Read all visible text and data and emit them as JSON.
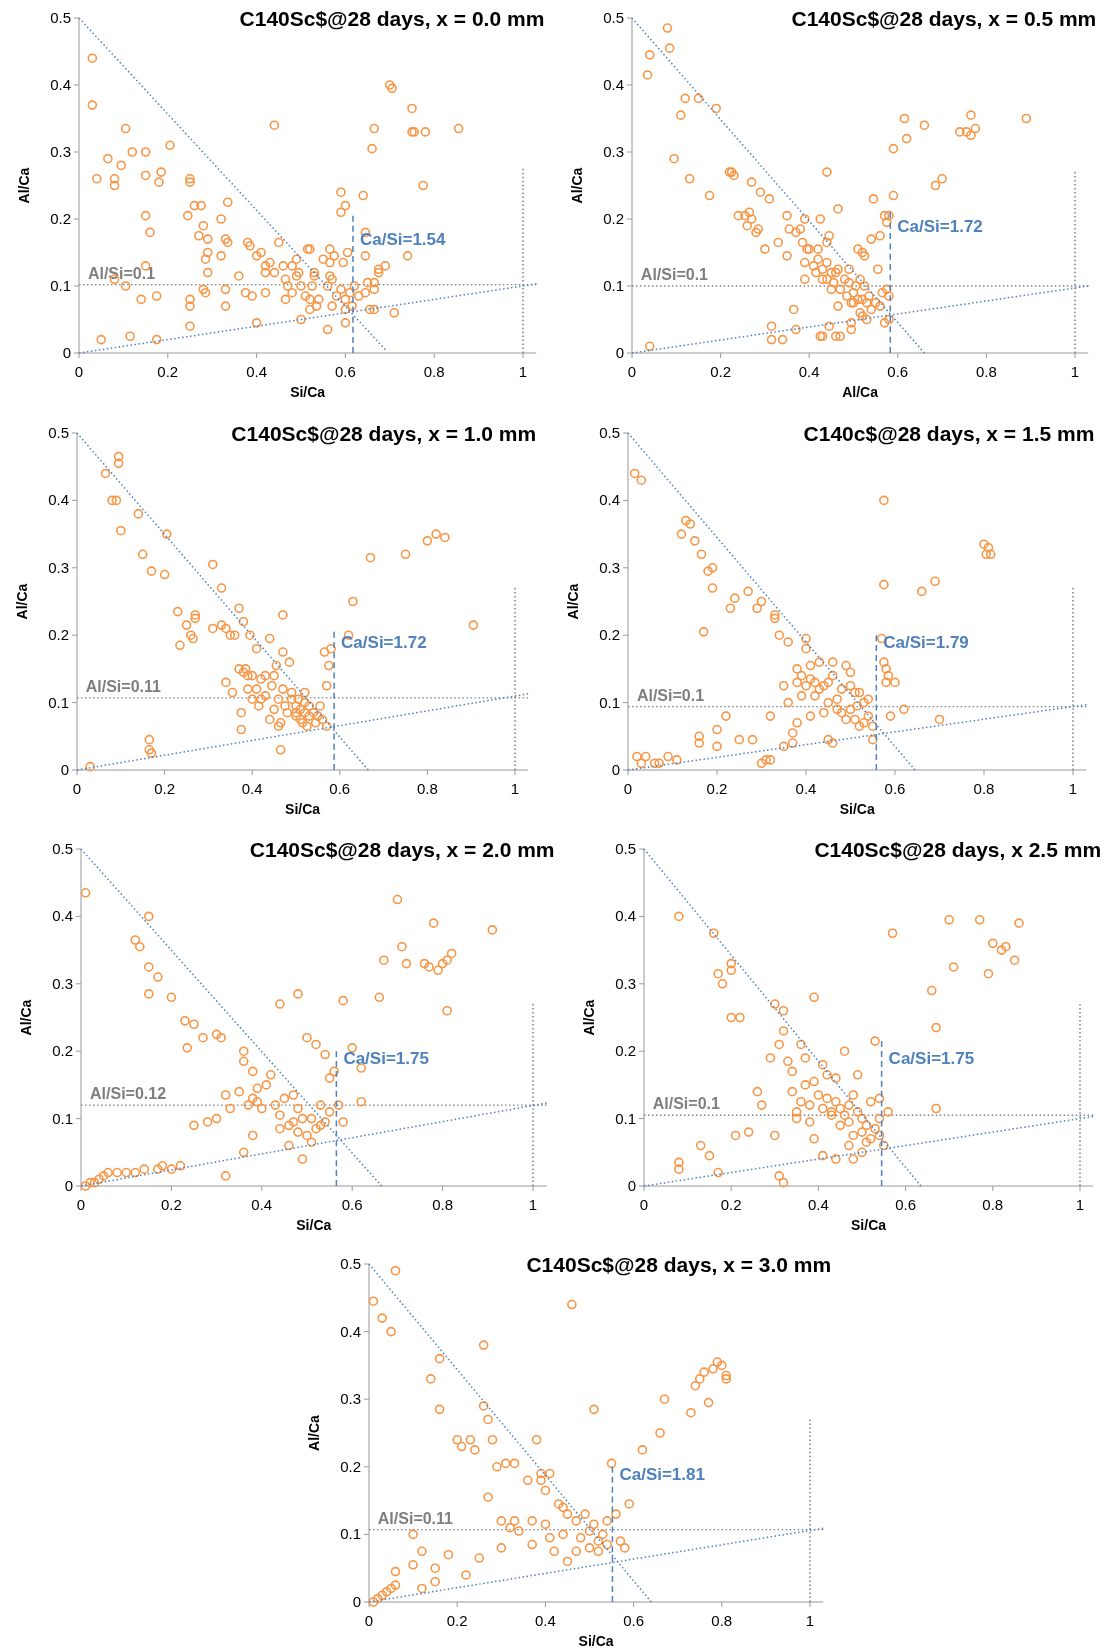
{
  "chart_data": [
    {
      "type": "scatter",
      "title": "C140Sc$@28 days, x = 0.0 mm",
      "xlabel": "Si/Ca",
      "ylabel": "Al/Ca",
      "xlim": [
        0,
        1.03
      ],
      "ylim": [
        0,
        0.5
      ],
      "xticks": [
        0,
        0.2,
        0.4,
        0.6,
        0.8,
        1
      ],
      "yticks": [
        0,
        0.1,
        0.2,
        0.3,
        0.4,
        0.5
      ],
      "series": [
        {
          "type": "scatter",
          "color": "#f79646",
          "marker": "circle",
          "x": [
            0.03,
            0.03,
            0.04,
            0.05,
            0.065,
            0.08,
            0.08,
            0.08,
            0.095,
            0.105,
            0.105,
            0.12,
            0.115,
            0.14,
            0.15,
            0.15,
            0.15,
            0.15,
            0.16,
            0.175,
            0.175,
            0.18,
            0.185,
            0.205,
            0.25,
            0.25,
            0.245,
            0.25,
            0.25,
            0.25,
            0.26,
            0.27,
            0.275,
            0.28,
            0.28,
            0.285,
            0.285,
            0.29,
            0.29,
            0.29,
            0.32,
            0.32,
            0.33,
            0.335,
            0.335,
            0.33,
            0.33,
            0.36,
            0.375,
            0.38,
            0.385,
            0.39,
            0.4,
            0.4,
            0.41,
            0.42,
            0.42,
            0.42,
            0.43,
            0.44,
            0.44,
            0.45,
            0.46,
            0.465,
            0.465,
            0.47,
            0.48,
            0.48,
            0.49,
            0.49,
            0.495,
            0.5,
            0.5,
            0.51,
            0.515,
            0.52,
            0.52,
            0.52,
            0.525,
            0.53,
            0.53,
            0.535,
            0.54,
            0.55,
            0.56,
            0.56,
            0.565,
            0.565,
            0.565,
            0.57,
            0.57,
            0.575,
            0.58,
            0.59,
            0.59,
            0.59,
            0.595,
            0.6,
            0.6,
            0.6,
            0.6,
            0.605,
            0.61,
            0.615,
            0.62,
            0.63,
            0.64,
            0.645,
            0.645,
            0.645,
            0.65,
            0.655,
            0.66,
            0.665,
            0.665,
            0.665,
            0.665,
            0.675,
            0.675,
            0.69,
            0.7,
            0.705,
            0.71,
            0.74,
            0.75,
            0.75,
            0.755,
            0.775,
            0.78,
            0.855
          ],
          "values": [
            0.44,
            0.37,
            0.26,
            0.02,
            0.29,
            0.26,
            0.25,
            0.11,
            0.28,
            0.335,
            0.1,
            0.3,
            0.025,
            0.08,
            0.3,
            0.265,
            0.205,
            0.13,
            0.18,
            0.02,
            0.085,
            0.255,
            0.27,
            0.31,
            0.26,
            0.255,
            0.205,
            0.08,
            0.07,
            0.04,
            0.22,
            0.175,
            0.22,
            0.19,
            0.095,
            0.09,
            0.14,
            0.17,
            0.15,
            0.12,
            0.2,
            0.145,
            0.17,
            0.165,
            0.225,
            0.095,
            0.07,
            0.115,
            0.09,
            0.165,
            0.16,
            0.085,
            0.145,
            0.045,
            0.15,
            0.13,
            0.12,
            0.09,
            0.135,
            0.12,
            0.34,
            0.165,
            0.13,
            0.11,
            0.08,
            0.1,
            0.13,
            0.09,
            0.14,
            0.115,
            0.12,
            0.05,
            0.1,
            0.085,
            0.155,
            0.155,
            0.08,
            0.065,
            0.1,
            0.115,
            0.12,
            0.07,
            0.08,
            0.14,
            0.1,
            0.035,
            0.155,
            0.135,
            0.115,
            0.11,
            0.07,
            0.145,
            0.085,
            0.24,
            0.21,
            0.095,
            0.135,
            0.22,
            0.08,
            0.065,
            0.045,
            0.15,
            0.09,
            0.07,
            0.1,
            0.085,
            0.235,
            0.18,
            0.145,
            0.09,
            0.105,
            0.065,
            0.305,
            0.335,
            0.105,
            0.095,
            0.065,
            0.125,
            0.12,
            0.13,
            0.4,
            0.395,
            0.06,
            0.145,
            0.365,
            0.33,
            0.33,
            0.25,
            0.33,
            0.335
          ]
        },
        {
          "type": "line",
          "color": "#4f81bd",
          "line_style": "dotted",
          "x": [
            0,
            0.69
          ],
          "values": [
            0.5,
            0.005
          ]
        },
        {
          "type": "line",
          "color": "#4f81bd",
          "line_style": "dotted",
          "x": [
            0,
            1.03
          ],
          "values": [
            0,
            0.103
          ]
        },
        {
          "type": "line",
          "color": "#4f81bd",
          "line_style": "dashed",
          "x": [
            0.617,
            0.617
          ],
          "values": [
            0,
            0.205
          ]
        },
        {
          "type": "line",
          "color": "#7f7f7f",
          "line_style": "dotted",
          "x": [
            1,
            1
          ],
          "values": [
            0,
            0.275
          ]
        }
      ],
      "ref_lines": [
        {
          "axis": "y",
          "value": 0.102,
          "label": "Al/Si=0.1",
          "color": "#7f7f7f",
          "line_style": "dotted"
        }
      ],
      "annotations": [
        {
          "text": "Ca/Si=1.54",
          "x": 0.617,
          "y": 0.17
        }
      ]
    },
    {
      "type": "scatter",
      "title": "C140Sc$@28 days, x = 0.5 mm",
      "xlabel": "Al/Ca",
      "ylabel": "Al/Ca",
      "xlim": [
        0,
        1.03
      ],
      "ylim": [
        0,
        0.5
      ],
      "xticks": [
        0,
        0.2,
        0.4,
        0.6,
        0.8,
        1
      ],
      "yticks": [
        0,
        0.1,
        0.2,
        0.3,
        0.4,
        0.5
      ],
      "series": [
        {
          "type": "scatter",
          "color": "#f79646",
          "marker": "circle",
          "x": [
            0.035,
            0.04,
            0.04,
            0.08,
            0.085,
            0.095,
            0.11,
            0.12,
            0.13,
            0.15,
            0.175,
            0.19,
            0.22,
            0.225,
            0.23,
            0.24,
            0.255,
            0.26,
            0.265,
            0.27,
            0.27,
            0.28,
            0.285,
            0.29,
            0.3,
            0.31,
            0.315,
            0.315,
            0.33,
            0.34,
            0.35,
            0.35,
            0.355,
            0.365,
            0.37,
            0.37,
            0.38,
            0.385,
            0.39,
            0.39,
            0.39,
            0.395,
            0.4,
            0.41,
            0.415,
            0.42,
            0.42,
            0.425,
            0.425,
            0.43,
            0.43,
            0.43,
            0.44,
            0.44,
            0.44,
            0.44,
            0.445,
            0.445,
            0.45,
            0.45,
            0.455,
            0.46,
            0.46,
            0.465,
            0.465,
            0.465,
            0.47,
            0.47,
            0.48,
            0.485,
            0.49,
            0.49,
            0.495,
            0.495,
            0.495,
            0.5,
            0.5,
            0.505,
            0.51,
            0.51,
            0.515,
            0.515,
            0.52,
            0.52,
            0.52,
            0.525,
            0.525,
            0.53,
            0.53,
            0.535,
            0.54,
            0.54,
            0.545,
            0.55,
            0.555,
            0.56,
            0.56,
            0.565,
            0.57,
            0.57,
            0.575,
            0.575,
            0.58,
            0.58,
            0.58,
            0.59,
            0.59,
            0.615,
            0.62,
            0.66,
            0.685,
            0.7,
            0.74,
            0.755,
            0.765,
            0.765,
            0.775,
            0.89
          ],
          "values": [
            0.415,
            0.445,
            0.01,
            0.485,
            0.455,
            0.29,
            0.355,
            0.38,
            0.26,
            0.38,
            0.235,
            0.365,
            0.27,
            0.27,
            0.265,
            0.205,
            0.205,
            0.19,
            0.21,
            0.255,
            0.2,
            0.18,
            0.185,
            0.24,
            0.155,
            0.23,
            0.04,
            0.02,
            0.165,
            0.02,
            0.205,
            0.145,
            0.185,
            0.065,
            0.18,
            0.035,
            0.185,
            0.165,
            0.2,
            0.135,
            0.11,
            0.155,
            0.155,
            0.13,
            0.12,
            0.155,
            0.14,
            0.2,
            0.025,
            0.025,
            0.125,
            0.11,
            0.11,
            0.135,
            0.165,
            0.27,
            0.04,
            0.175,
            0.095,
            0.12,
            0.105,
            0.12,
            0.025,
            0.125,
            0.215,
            0.07,
            0.095,
            0.025,
            0.11,
            0.085,
            0.125,
            0.105,
            0.075,
            0.045,
            0.035,
            0.09,
            0.075,
            0.1,
            0.155,
            0.08,
            0.06,
            0.11,
            0.15,
            0.055,
            0.08,
            0.1,
            0.145,
            0.075,
            0.05,
            0.085,
            0.17,
            0.065,
            0.23,
            0.075,
            0.125,
            0.175,
            0.07,
            0.09,
            0.205,
            0.045,
            0.195,
            0.095,
            0.205,
            0.085,
            0.05,
            0.305,
            0.235,
            0.35,
            0.32,
            0.34,
            0.25,
            0.26,
            0.33,
            0.33,
            0.325,
            0.355,
            0.335,
            0.35
          ]
        },
        {
          "type": "line",
          "color": "#4f81bd",
          "line_style": "dotted",
          "x": [
            0,
            0.66
          ],
          "values": [
            0.5,
            0
          ]
        },
        {
          "type": "line",
          "color": "#4f81bd",
          "line_style": "dotted",
          "x": [
            0,
            1.03
          ],
          "values": [
            0,
            0.1
          ]
        },
        {
          "type": "line",
          "color": "#4f81bd",
          "line_style": "dashed",
          "x": [
            0.583,
            0.583
          ],
          "values": [
            0,
            0.21
          ]
        },
        {
          "type": "line",
          "color": "#7f7f7f",
          "line_style": "dotted",
          "x": [
            1,
            1
          ],
          "values": [
            0,
            0.27
          ]
        }
      ],
      "ref_lines": [
        {
          "axis": "y",
          "value": 0.1,
          "label": "Al/Si=0.1",
          "color": "#7f7f7f",
          "line_style": "dotted"
        }
      ],
      "annotations": [
        {
          "text": "Ca/Si=1.72",
          "x": 0.583,
          "y": 0.19
        }
      ]
    },
    {
      "type": "scatter",
      "title": "C140Sc$@28 days, x = 1.0 mm",
      "xlabel": "Si/Ca",
      "ylabel": "Al/Ca",
      "xlim": [
        0,
        1.03
      ],
      "ylim": [
        0,
        0.5
      ],
      "xticks": [
        0,
        0.2,
        0.4,
        0.6,
        0.8,
        1
      ],
      "yticks": [
        0,
        0.1,
        0.2,
        0.3,
        0.4,
        0.5
      ],
      "series": [
        {
          "type": "scatter",
          "color": "#f79646",
          "marker": "circle",
          "x": [
            0.03,
            0.065,
            0.08,
            0.09,
            0.095,
            0.095,
            0.1,
            0.165,
            0.165,
            0.17,
            0.14,
            0.15,
            0.17,
            0.2,
            0.205,
            0.23,
            0.235,
            0.25,
            0.26,
            0.265,
            0.27,
            0.27,
            0.31,
            0.31,
            0.33,
            0.33,
            0.34,
            0.34,
            0.35,
            0.355,
            0.36,
            0.37,
            0.37,
            0.375,
            0.375,
            0.38,
            0.38,
            0.385,
            0.39,
            0.39,
            0.395,
            0.4,
            0.4,
            0.41,
            0.41,
            0.415,
            0.42,
            0.42,
            0.43,
            0.43,
            0.44,
            0.44,
            0.445,
            0.45,
            0.45,
            0.455,
            0.46,
            0.46,
            0.465,
            0.465,
            0.47,
            0.47,
            0.47,
            0.475,
            0.48,
            0.485,
            0.49,
            0.49,
            0.5,
            0.5,
            0.5,
            0.505,
            0.51,
            0.51,
            0.515,
            0.52,
            0.52,
            0.52,
            0.525,
            0.53,
            0.53,
            0.54,
            0.545,
            0.55,
            0.555,
            0.56,
            0.565,
            0.57,
            0.57,
            0.575,
            0.58,
            0.62,
            0.63,
            0.67,
            0.75,
            0.8,
            0.82,
            0.84,
            0.905
          ],
          "values": [
            0.005,
            0.44,
            0.4,
            0.4,
            0.465,
            0.455,
            0.355,
            0.045,
            0.03,
            0.025,
            0.38,
            0.32,
            0.295,
            0.29,
            0.35,
            0.235,
            0.185,
            0.215,
            0.2,
            0.195,
            0.225,
            0.23,
            0.305,
            0.21,
            0.27,
            0.215,
            0.21,
            0.13,
            0.2,
            0.115,
            0.2,
            0.24,
            0.15,
            0.06,
            0.085,
            0.22,
            0.145,
            0.15,
            0.14,
            0.12,
            0.2,
            0.105,
            0.14,
            0.18,
            0.12,
            0.095,
            0.105,
            0.135,
            0.11,
            0.14,
            0.075,
            0.195,
            0.125,
            0.09,
            0.14,
            0.155,
            0.105,
            0.065,
            0.07,
            0.03,
            0.23,
            0.175,
            0.12,
            0.095,
            0.085,
            0.16,
            0.105,
            0.115,
            0.095,
            0.085,
            0.08,
            0.105,
            0.09,
            0.075,
            0.07,
            0.085,
            0.115,
            0.1,
            0.065,
            0.08,
            0.095,
            0.085,
            0.07,
            0.08,
            0.095,
            0.075,
            0.175,
            0.065,
            0.125,
            0.155,
            0.18,
            0.2,
            0.25,
            0.315,
            0.32,
            0.34,
            0.35,
            0.345,
            0.215
          ]
        },
        {
          "type": "line",
          "color": "#4f81bd",
          "line_style": "dotted",
          "x": [
            0,
            0.665
          ],
          "values": [
            0.5,
            0
          ]
        },
        {
          "type": "line",
          "color": "#4f81bd",
          "line_style": "dotted",
          "x": [
            0,
            1.03
          ],
          "values": [
            0,
            0.113
          ]
        },
        {
          "type": "line",
          "color": "#4f81bd",
          "line_style": "dashed",
          "x": [
            0.587,
            0.587
          ],
          "values": [
            0,
            0.205
          ]
        },
        {
          "type": "line",
          "color": "#7f7f7f",
          "line_style": "dotted",
          "x": [
            1,
            1
          ],
          "values": [
            0,
            0.27
          ]
        }
      ],
      "ref_lines": [
        {
          "axis": "y",
          "value": 0.107,
          "label": "Al/Si=0.11",
          "color": "#7f7f7f",
          "line_style": "dotted"
        }
      ],
      "annotations": [
        {
          "text": "Ca/Si=1.72",
          "x": 0.587,
          "y": 0.19
        }
      ]
    },
    {
      "type": "scatter",
      "title": "C140c$@28 days, x = 1.5 mm",
      "xlabel": "Si/Ca",
      "ylabel": "Al/Ca",
      "xlim": [
        0,
        1.03
      ],
      "ylim": [
        0,
        0.5
      ],
      "xticks": [
        0,
        0.2,
        0.4,
        0.6,
        0.8,
        1
      ],
      "yticks": [
        0,
        0.1,
        0.2,
        0.3,
        0.4,
        0.5
      ],
      "series": [
        {
          "type": "scatter",
          "color": "#f79646",
          "marker": "circle",
          "x": [
            0.015,
            0.03,
            0.02,
            0.03,
            0.04,
            0.06,
            0.07,
            0.09,
            0.11,
            0.12,
            0.13,
            0.14,
            0.15,
            0.165,
            0.17,
            0.16,
            0.16,
            0.18,
            0.19,
            0.19,
            0.2,
            0.2,
            0.22,
            0.23,
            0.24,
            0.25,
            0.27,
            0.28,
            0.29,
            0.3,
            0.3,
            0.31,
            0.32,
            0.32,
            0.33,
            0.33,
            0.34,
            0.35,
            0.35,
            0.36,
            0.36,
            0.37,
            0.37,
            0.38,
            0.38,
            0.38,
            0.39,
            0.39,
            0.4,
            0.4,
            0.4,
            0.41,
            0.41,
            0.41,
            0.42,
            0.42,
            0.43,
            0.43,
            0.44,
            0.44,
            0.45,
            0.45,
            0.45,
            0.46,
            0.46,
            0.46,
            0.47,
            0.47,
            0.48,
            0.48,
            0.49,
            0.49,
            0.5,
            0.5,
            0.5,
            0.51,
            0.51,
            0.515,
            0.52,
            0.52,
            0.53,
            0.53,
            0.54,
            0.54,
            0.55,
            0.55,
            0.57,
            0.575,
            0.575,
            0.575,
            0.58,
            0.58,
            0.585,
            0.59,
            0.6,
            0.62,
            0.66,
            0.69,
            0.7,
            0.8,
            0.805,
            0.81,
            0.815
          ],
          "values": [
            0.44,
            0.43,
            0.02,
            0.01,
            0.02,
            0.01,
            0.01,
            0.02,
            0.015,
            0.35,
            0.37,
            0.365,
            0.34,
            0.32,
            0.205,
            0.05,
            0.04,
            0.295,
            0.3,
            0.27,
            0.06,
            0.035,
            0.08,
            0.24,
            0.255,
            0.045,
            0.265,
            0.045,
            0.24,
            0.25,
            0.01,
            0.015,
            0.015,
            0.08,
            0.225,
            0.23,
            0.2,
            0.125,
            0.035,
            0.19,
            0.1,
            0.055,
            0.04,
            0.15,
            0.13,
            0.07,
            0.14,
            0.11,
            0.195,
            0.18,
            0.125,
            0.155,
            0.135,
            0.08,
            0.13,
            0.11,
            0.12,
            0.16,
            0.125,
            0.085,
            0.13,
            0.1,
            0.045,
            0.16,
            0.14,
            0.04,
            0.105,
            0.09,
            0.085,
            0.12,
            0.155,
            0.075,
            0.145,
            0.125,
            0.09,
            0.115,
            0.075,
            0.095,
            0.065,
            0.115,
            0.1,
            0.07,
            0.08,
            0.105,
            0.065,
            0.045,
            0.195,
            0.275,
            0.4,
            0.16,
            0.15,
            0.13,
            0.14,
            0.08,
            0.13,
            0.09,
            0.265,
            0.28,
            0.075,
            0.335,
            0.32,
            0.33,
            0.32
          ]
        },
        {
          "type": "line",
          "color": "#4f81bd",
          "line_style": "dotted",
          "x": [
            0,
            0.645
          ],
          "values": [
            0.5,
            0
          ]
        },
        {
          "type": "line",
          "color": "#4f81bd",
          "line_style": "dotted",
          "x": [
            0,
            1.03
          ],
          "values": [
            0,
            0.097
          ]
        },
        {
          "type": "line",
          "color": "#4f81bd",
          "line_style": "dashed",
          "x": [
            0.558,
            0.558
          ],
          "values": [
            0,
            0.2
          ]
        },
        {
          "type": "line",
          "color": "#7f7f7f",
          "line_style": "dotted",
          "x": [
            1,
            1
          ],
          "values": [
            0,
            0.27
          ]
        }
      ],
      "ref_lines": [
        {
          "axis": "y",
          "value": 0.094,
          "label": "Al/Si=0.1",
          "color": "#7f7f7f",
          "line_style": "dotted"
        }
      ],
      "annotations": [
        {
          "text": "Ca/Si=1.79",
          "x": 0.558,
          "y": 0.19
        }
      ]
    },
    {
      "type": "scatter",
      "title": "C140Sc$@28 days, x = 2.0 mm",
      "xlabel": "Si/Ca",
      "ylabel": "Al/Ca",
      "xlim": [
        0,
        1.03
      ],
      "ylim": [
        0,
        0.5
      ],
      "xticks": [
        0,
        0.2,
        0.4,
        0.6,
        0.8,
        1
      ],
      "yticks": [
        0,
        0.1,
        0.2,
        0.3,
        0.4,
        0.5
      ],
      "series": [
        {
          "type": "scatter",
          "color": "#f79646",
          "marker": "circle",
          "x": [
            0.01,
            0.02,
            0.03,
            0.01,
            0.04,
            0.05,
            0.06,
            0.08,
            0.1,
            0.12,
            0.13,
            0.12,
            0.14,
            0.15,
            0.15,
            0.15,
            0.17,
            0.17,
            0.18,
            0.2,
            0.2,
            0.22,
            0.23,
            0.235,
            0.25,
            0.25,
            0.27,
            0.28,
            0.3,
            0.3,
            0.31,
            0.32,
            0.32,
            0.33,
            0.35,
            0.36,
            0.36,
            0.36,
            0.37,
            0.38,
            0.38,
            0.38,
            0.39,
            0.39,
            0.4,
            0.41,
            0.42,
            0.43,
            0.44,
            0.44,
            0.44,
            0.45,
            0.46,
            0.46,
            0.47,
            0.47,
            0.48,
            0.48,
            0.48,
            0.49,
            0.49,
            0.5,
            0.5,
            0.51,
            0.51,
            0.52,
            0.52,
            0.53,
            0.53,
            0.54,
            0.54,
            0.55,
            0.55,
            0.56,
            0.57,
            0.58,
            0.58,
            0.6,
            0.62,
            0.62,
            0.66,
            0.67,
            0.7,
            0.71,
            0.72,
            0.76,
            0.77,
            0.78,
            0.79,
            0.8,
            0.81,
            0.81,
            0.82,
            0.91
          ],
          "values": [
            0,
            0.005,
            0.005,
            0.435,
            0.01,
            0.015,
            0.02,
            0.02,
            0.02,
            0.365,
            0.355,
            0.02,
            0.025,
            0.4,
            0.325,
            0.285,
            0.31,
            0.025,
            0.03,
            0.28,
            0.025,
            0.03,
            0.245,
            0.205,
            0.24,
            0.09,
            0.22,
            0.095,
            0.225,
            0.1,
            0.22,
            0.015,
            0.135,
            0.115,
            0.14,
            0.2,
            0.185,
            0.05,
            0.12,
            0.17,
            0.13,
            0.075,
            0.145,
            0.125,
            0.115,
            0.15,
            0.165,
            0.12,
            0.27,
            0.105,
            0.085,
            0.13,
            0.09,
            0.06,
            0.135,
            0.095,
            0.285,
            0.115,
            0.08,
            0.1,
            0.04,
            0.22,
            0.075,
            0.1,
            0.065,
            0.21,
            0.085,
            0.09,
            0.12,
            0.095,
            0.195,
            0.11,
            0.16,
            0.17,
            0.12,
            0.275,
            0.095,
            0.205,
            0.175,
            0.125,
            0.28,
            0.335,
            0.425,
            0.355,
            0.33,
            0.33,
            0.325,
            0.39,
            0.32,
            0.33,
            0.26,
            0.335,
            0.345,
            0.38
          ]
        },
        {
          "type": "line",
          "color": "#4f81bd",
          "line_style": "dotted",
          "x": [
            0,
            0.665
          ],
          "values": [
            0.5,
            0
          ]
        },
        {
          "type": "line",
          "color": "#4f81bd",
          "line_style": "dotted",
          "x": [
            0,
            1.03
          ],
          "values": [
            0,
            0.123
          ]
        },
        {
          "type": "line",
          "color": "#4f81bd",
          "line_style": "dashed",
          "x": [
            0.565,
            0.565
          ],
          "values": [
            0,
            0.2
          ]
        },
        {
          "type": "line",
          "color": "#7f7f7f",
          "line_style": "dotted",
          "x": [
            1,
            1
          ],
          "values": [
            0,
            0.27
          ]
        }
      ],
      "ref_lines": [
        {
          "axis": "y",
          "value": 0.12,
          "label": "Al/Si=0.12",
          "color": "#7f7f7f",
          "line_style": "dotted"
        }
      ],
      "annotations": [
        {
          "text": "Ca/Si=1.75",
          "x": 0.565,
          "y": 0.19
        }
      ]
    },
    {
      "type": "scatter",
      "title": "C140Sc$@28 days, x 2.5 mm",
      "xlabel": "Si/Ca",
      "ylabel": "Al/Ca",
      "xlim": [
        0,
        1.03
      ],
      "ylim": [
        0,
        0.5
      ],
      "xticks": [
        0,
        0.2,
        0.4,
        0.6,
        0.8,
        1
      ],
      "yticks": [
        0,
        0.1,
        0.2,
        0.3,
        0.4,
        0.5
      ],
      "series": [
        {
          "type": "scatter",
          "color": "#f79646",
          "marker": "circle",
          "x": [
            0.08,
            0.08,
            0.08,
            0.13,
            0.15,
            0.16,
            0.17,
            0.17,
            0.18,
            0.2,
            0.2,
            0.2,
            0.21,
            0.22,
            0.24,
            0.26,
            0.27,
            0.29,
            0.3,
            0.3,
            0.31,
            0.31,
            0.32,
            0.32,
            0.32,
            0.33,
            0.34,
            0.34,
            0.35,
            0.35,
            0.36,
            0.36,
            0.37,
            0.37,
            0.38,
            0.38,
            0.39,
            0.39,
            0.39,
            0.4,
            0.41,
            0.41,
            0.41,
            0.42,
            0.42,
            0.43,
            0.43,
            0.44,
            0.44,
            0.44,
            0.45,
            0.45,
            0.46,
            0.46,
            0.47,
            0.47,
            0.47,
            0.48,
            0.48,
            0.48,
            0.49,
            0.49,
            0.5,
            0.5,
            0.5,
            0.51,
            0.51,
            0.52,
            0.52,
            0.53,
            0.53,
            0.54,
            0.54,
            0.54,
            0.55,
            0.56,
            0.57,
            0.66,
            0.67,
            0.67,
            0.7,
            0.71,
            0.77,
            0.79,
            0.8,
            0.82,
            0.83,
            0.85,
            0.86
          ],
          "values": [
            0.025,
            0.035,
            0.4,
            0.06,
            0.045,
            0.375,
            0.315,
            0.02,
            0.3,
            0.32,
            0.33,
            0.25,
            0.075,
            0.25,
            0.08,
            0.14,
            0.12,
            0.19,
            0.27,
            0.075,
            0.21,
            0.015,
            0.005,
            0.26,
            0.23,
            0.185,
            0.17,
            0.14,
            0.11,
            0.1,
            0.21,
            0.125,
            0.19,
            0.15,
            0.12,
            0.095,
            0.28,
            0.155,
            0.07,
            0.135,
            0.18,
            0.115,
            0.045,
            0.165,
            0.13,
            0.105,
            0.11,
            0.16,
            0.125,
            0.04,
            0.115,
            0.09,
            0.2,
            0.105,
            0.12,
            0.095,
            0.06,
            0.135,
            0.075,
            0.04,
            0.11,
            0.165,
            0.1,
            0.08,
            0.05,
            0.09,
            0.065,
            0.125,
            0.07,
            0.085,
            0.215,
            0.13,
            0.075,
            0.1,
            0.06,
            0.11,
            0.375,
            0.29,
            0.235,
            0.115,
            0.395,
            0.325,
            0.395,
            0.315,
            0.36,
            0.35,
            0.355,
            0.335,
            0.39
          ]
        },
        {
          "type": "line",
          "color": "#4f81bd",
          "line_style": "dotted",
          "x": [
            0,
            0.635
          ],
          "values": [
            0.5,
            0
          ]
        },
        {
          "type": "line",
          "color": "#4f81bd",
          "line_style": "dotted",
          "x": [
            0,
            1.03
          ],
          "values": [
            0,
            0.103
          ]
        },
        {
          "type": "line",
          "color": "#4f81bd",
          "line_style": "dashed",
          "x": [
            0.545,
            0.545
          ],
          "values": [
            0,
            0.215
          ]
        },
        {
          "type": "line",
          "color": "#7f7f7f",
          "line_style": "dotted",
          "x": [
            1,
            1
          ],
          "values": [
            0,
            0.27
          ]
        }
      ],
      "ref_lines": [
        {
          "axis": "y",
          "value": 0.105,
          "label": "Al/Si=0.1",
          "color": "#7f7f7f",
          "line_style": "dotted"
        }
      ],
      "annotations": [
        {
          "text": "Ca/Si=1.75",
          "x": 0.545,
          "y": 0.19
        }
      ]
    },
    {
      "type": "scatter",
      "title": "C140Sc$@28 days, x = 3.0 mm",
      "xlabel": "Si/Ca",
      "ylabel": "Al/Ca",
      "xlim": [
        0,
        1.03
      ],
      "ylim": [
        0,
        0.5
      ],
      "xticks": [
        0,
        0.2,
        0.4,
        0.6,
        0.8,
        1
      ],
      "yticks": [
        0,
        0.1,
        0.2,
        0.3,
        0.4,
        0.5
      ],
      "series": [
        {
          "type": "scatter",
          "color": "#f79646",
          "marker": "circle",
          "x": [
            0.01,
            0.03,
            0.05,
            0.06,
            0.01,
            0.02,
            0.03,
            0.04,
            0.05,
            0.06,
            0.06,
            0.1,
            0.1,
            0.12,
            0.12,
            0.15,
            0.15,
            0.14,
            0.16,
            0.16,
            0.18,
            0.2,
            0.21,
            0.22,
            0.23,
            0.24,
            0.25,
            0.26,
            0.26,
            0.27,
            0.27,
            0.28,
            0.29,
            0.3,
            0.3,
            0.31,
            0.32,
            0.33,
            0.33,
            0.34,
            0.36,
            0.37,
            0.37,
            0.38,
            0.39,
            0.39,
            0.4,
            0.4,
            0.41,
            0.41,
            0.42,
            0.43,
            0.44,
            0.44,
            0.45,
            0.45,
            0.46,
            0.47,
            0.47,
            0.48,
            0.49,
            0.5,
            0.5,
            0.51,
            0.51,
            0.52,
            0.52,
            0.53,
            0.54,
            0.54,
            0.55,
            0.56,
            0.57,
            0.58,
            0.59,
            0.62,
            0.66,
            0.67,
            0.73,
            0.74,
            0.75,
            0.76,
            0.77,
            0.78,
            0.79,
            0.8,
            0.81,
            0.81
          ],
          "values": [
            0.445,
            0.42,
            0.4,
            0.49,
            0,
            0.005,
            0.01,
            0.015,
            0.02,
            0.025,
            0.045,
            0.1,
            0.055,
            0.02,
            0.075,
            0.03,
            0.05,
            0.33,
            0.36,
            0.285,
            0.07,
            0.24,
            0.23,
            0.04,
            0.24,
            0.225,
            0.065,
            0.38,
            0.29,
            0.27,
            0.155,
            0.24,
            0.2,
            0.08,
            0.12,
            0.205,
            0.11,
            0.205,
            0.12,
            0.105,
            0.18,
            0.12,
            0.085,
            0.24,
            0.19,
            0.18,
            0.165,
            0.115,
            0.19,
            0.095,
            0.075,
            0.145,
            0.14,
            0.1,
            0.13,
            0.06,
            0.44,
            0.12,
            0.075,
            0.095,
            0.13,
            0.105,
            0.08,
            0.285,
            0.115,
            0.09,
            0.075,
            0.1,
            0.12,
            0.085,
            0.205,
            0.13,
            0.09,
            0.08,
            0.145,
            0.225,
            0.25,
            0.3,
            0.28,
            0.32,
            0.33,
            0.34,
            0.295,
            0.345,
            0.355,
            0.35,
            0.33,
            0.335
          ]
        },
        {
          "type": "line",
          "color": "#4f81bd",
          "line_style": "dotted",
          "x": [
            0,
            0.64
          ],
          "values": [
            0.5,
            0
          ]
        },
        {
          "type": "line",
          "color": "#4f81bd",
          "line_style": "dotted",
          "x": [
            0,
            1.03
          ],
          "values": [
            0,
            0.109
          ]
        },
        {
          "type": "line",
          "color": "#4f81bd",
          "line_style": "dashed",
          "x": [
            0.552,
            0.552
          ],
          "values": [
            0,
            0.2
          ]
        },
        {
          "type": "line",
          "color": "#7f7f7f",
          "line_style": "dotted",
          "x": [
            1,
            1
          ],
          "values": [
            0,
            0.27
          ]
        }
      ],
      "ref_lines": [
        {
          "axis": "y",
          "value": 0.107,
          "label": "Al/Si=0.11",
          "color": "#7f7f7f",
          "line_style": "dotted"
        }
      ],
      "annotations": [
        {
          "text": "Ca/Si=1.81",
          "x": 0.552,
          "y": 0.19
        }
      ]
    }
  ]
}
